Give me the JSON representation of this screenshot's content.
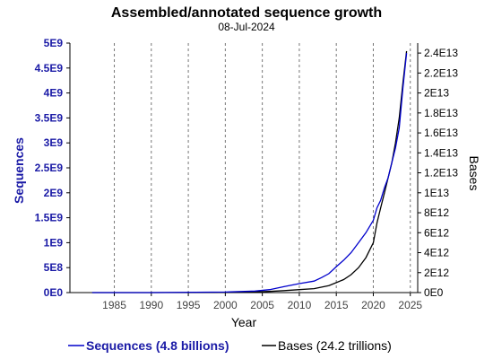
{
  "chart_data": {
    "type": "line",
    "title": "Assembled/annotated sequence growth",
    "subtitle": "08-Jul-2024",
    "xlabel": "Year",
    "xlim": [
      1979,
      2026
    ],
    "xticks": [
      1985,
      1990,
      1995,
      2000,
      2005,
      2010,
      2015,
      2020,
      2025
    ],
    "ylabel_left": "Sequences",
    "ylabel_right": "Bases",
    "ylim_left": [
      0,
      5000000000
    ],
    "ylim_right": [
      0,
      25000000000000
    ],
    "yticks_left": [
      "0E0",
      "5E8",
      "1E9",
      "1.5E9",
      "2E9",
      "2.5E9",
      "3E9",
      "3.5E9",
      "4E9",
      "4.5E9",
      "5E9"
    ],
    "yticks_right": [
      "0E0",
      "2E12",
      "4E12",
      "6E12",
      "8E12",
      "1E13",
      "1.2E13",
      "1.4E13",
      "1.6E13",
      "1.8E13",
      "2E13",
      "2.2E13",
      "2.4E13"
    ],
    "legend": {
      "sequences": "Sequences (4.8 billions)",
      "bases": "Bases (24.2 trillions)"
    },
    "colors": {
      "sequences": "#0000cc",
      "bases": "#000000",
      "left_axis_text": "#1a1aa6"
    },
    "series": [
      {
        "name": "Sequences",
        "axis": "left",
        "x": [
          1982,
          1990,
          2000,
          2004,
          2006,
          2008,
          2010,
          2012,
          2013,
          2014,
          2015,
          2016,
          2017,
          2018,
          2019,
          2020,
          2020.5,
          2021,
          2021.5,
          2022,
          2022.5,
          2023,
          2023.5,
          2024,
          2024.5
        ],
        "values": [
          0,
          0,
          10000000,
          30000000,
          60000000,
          120000000,
          180000000,
          230000000,
          300000000,
          380000000,
          520000000,
          650000000,
          800000000,
          1000000000,
          1200000000,
          1450000000,
          1700000000,
          1850000000,
          2100000000,
          2300000000,
          2600000000,
          2900000000,
          3300000000,
          4100000000,
          4800000000
        ]
      },
      {
        "name": "Bases",
        "axis": "right",
        "x": [
          1982,
          1990,
          2000,
          2004,
          2006,
          2008,
          2010,
          2012,
          2014,
          2015,
          2016,
          2017,
          2018,
          2019,
          2020,
          2020.5,
          2021,
          2021.5,
          2022,
          2022.5,
          2023,
          2023.5,
          2024,
          2024.5
        ],
        "values": [
          0,
          0,
          20000000000,
          60000000000,
          120000000000,
          200000000000,
          300000000000,
          400000000000,
          700000000000,
          1000000000000,
          1300000000000,
          1800000000000,
          2500000000000,
          3500000000000,
          5000000000000,
          7000000000000,
          8500000000000,
          10000000000000,
          11500000000000,
          13000000000000,
          15000000000000,
          17500000000000,
          21000000000000,
          24200000000000
        ]
      }
    ]
  }
}
